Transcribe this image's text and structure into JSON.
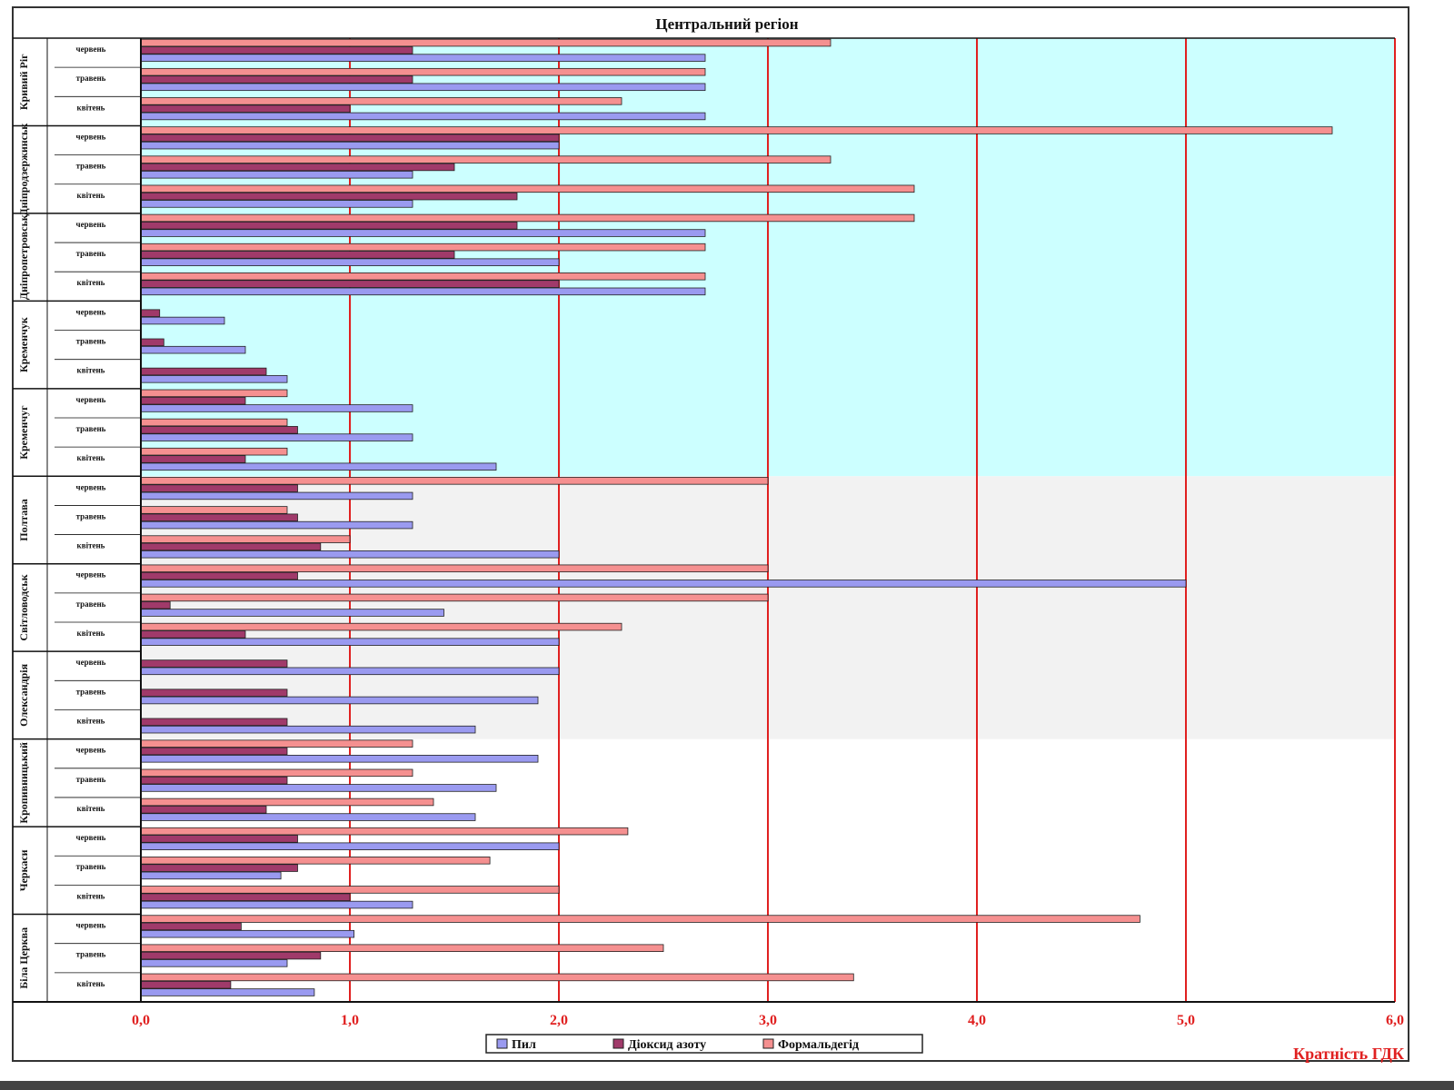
{
  "chart_data": {
    "type": "bar",
    "orientation": "horizontal",
    "title": "Центральний регіон",
    "xlabel": "Кратність ГДК",
    "xlim": [
      0,
      6
    ],
    "x_ticks": [
      "0,0",
      "1,0",
      "2,0",
      "3,0",
      "4,0",
      "5,0",
      "6,0"
    ],
    "grid": "vertical",
    "legend_position": "bottom",
    "groups": [
      "Кривий Ріг",
      "Дніпродзержинськ",
      "Дніпропетровськ",
      "Кременчук",
      "Кременчуг",
      "Полтава",
      "Світловодськ",
      "Олександрія",
      "Кропивницький",
      "Черкаси",
      "Біла Церква"
    ],
    "subcategories": [
      "червень",
      "травень",
      "квітень"
    ],
    "series": [
      {
        "name": "Пил",
        "color": "#9a9af0",
        "values": [
          2.7,
          2.7,
          2.7,
          2.0,
          1.3,
          1.3,
          2.7,
          2.0,
          2.7,
          0.4,
          0.5,
          0.7,
          1.3,
          1.3,
          1.7,
          1.3,
          1.3,
          2.0,
          5.0,
          1.45,
          2.0,
          2.0,
          1.9,
          1.6,
          1.9,
          1.7,
          1.6,
          2.0,
          0.67,
          1.3,
          1.02,
          0.7,
          0.83
        ]
      },
      {
        "name": "Діоксид азоту",
        "color": "#a03a6a",
        "values": [
          1.3,
          1.3,
          1.0,
          2.0,
          1.5,
          1.8,
          1.8,
          1.5,
          2.0,
          0.09,
          0.11,
          0.6,
          0.5,
          0.75,
          0.5,
          0.75,
          0.75,
          0.86,
          0.75,
          0.14,
          0.5,
          0.7,
          0.7,
          0.7,
          0.7,
          0.7,
          0.6,
          0.75,
          0.75,
          1.0,
          0.48,
          0.86,
          0.43
        ]
      },
      {
        "name": "Формальдегід",
        "color": "#f59090",
        "values": [
          3.3,
          2.7,
          2.3,
          5.7,
          3.3,
          3.7,
          3.7,
          2.7,
          2.7,
          0.0,
          0.0,
          0.0,
          0.7,
          0.7,
          0.7,
          3.0,
          0.7,
          1.0,
          3.0,
          3.0,
          2.3,
          0.0,
          0.0,
          0.0,
          1.3,
          1.3,
          1.4,
          2.33,
          1.67,
          2.0,
          4.78,
          2.5,
          3.41
        ]
      }
    ],
    "background_bands": [
      {
        "from_group": 0,
        "to_group": 4,
        "color": "#ccffff"
      },
      {
        "from_group": 5,
        "to_group": 7,
        "color": "#f2f2f2"
      }
    ]
  }
}
